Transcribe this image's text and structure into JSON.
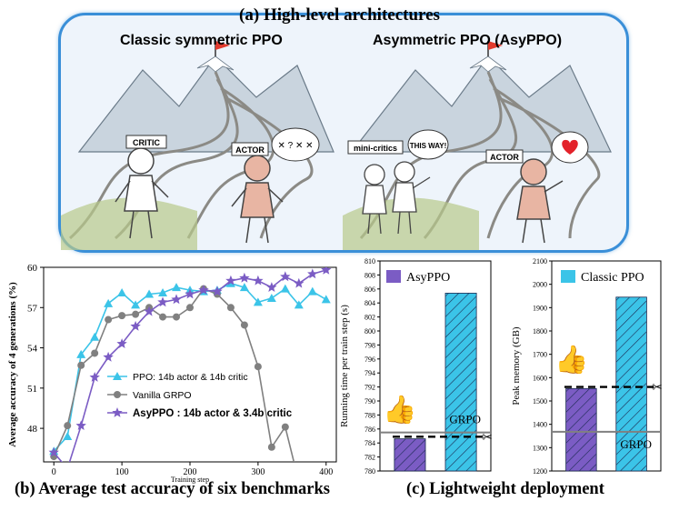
{
  "figure_a": {
    "title": "(a) High-level architectures",
    "left_title": "Classic symmetric PPO",
    "right_title": "Asymmetric PPO (AsyPPO)",
    "left_labels": {
      "critic": "CRITIC",
      "actor": "ACTOR",
      "thought": "✕ ? ✕ ✕"
    },
    "right_labels": {
      "critics": "mini-critics",
      "speech": "THIS WAY!",
      "actor": "ACTOR"
    }
  },
  "captions": {
    "b": "(b) Average test accuracy of six benchmarks",
    "c": "(c) Lightweight deployment"
  },
  "colors": {
    "ppo": "#3bc4e8",
    "grpo": "#808080",
    "asyppo": "#7b5cc4",
    "frame": "#3a8fd8"
  },
  "chart_data": [
    {
      "type": "line",
      "xlabel": "Training step",
      "ylabel": "Average accuracy of 4 generations (%)",
      "xlim": [
        -15,
        415
      ],
      "ylim": [
        45.5,
        60
      ],
      "xticks": [
        0,
        100,
        200,
        300,
        400
      ],
      "yticks": [
        48,
        51,
        54,
        57,
        60
      ],
      "grid": false,
      "legend": "lower-left",
      "series": [
        {
          "name": "PPO: 14b actor & 14b critic",
          "marker": "triangle",
          "x": [
            0,
            20,
            40,
            60,
            80,
            100,
            120,
            140,
            160,
            180,
            200,
            220,
            240,
            260,
            280,
            300,
            320,
            340,
            360,
            380,
            400
          ],
          "y": [
            46.3,
            47.4,
            53.5,
            54.8,
            57.3,
            58.1,
            57.2,
            58.0,
            58.1,
            58.5,
            58.3,
            58.2,
            58.3,
            58.8,
            58.5,
            57.4,
            57.7,
            58.4,
            57.2,
            58.2,
            57.6
          ]
        },
        {
          "name": "Vanilla GRPO",
          "marker": "circle",
          "x": [
            0,
            20,
            40,
            60,
            80,
            100,
            120,
            140,
            160,
            180,
            200,
            220,
            240,
            260,
            280,
            300,
            320,
            340,
            360
          ],
          "y": [
            45.9,
            48.2,
            52.7,
            53.6,
            56.1,
            56.4,
            56.5,
            57.0,
            56.3,
            56.3,
            57.0,
            58.4,
            58.0,
            57.0,
            55.7,
            52.6,
            46.6,
            48.1,
            44.0
          ]
        },
        {
          "name": "AsyPPO : 14b actor & 3.4b critic",
          "marker": "star",
          "x": [
            0,
            20,
            40,
            60,
            80,
            100,
            120,
            140,
            160,
            180,
            200,
            220,
            240,
            260,
            280,
            300,
            320,
            340,
            360,
            380,
            400
          ],
          "y": [
            46.2,
            45.0,
            48.2,
            51.8,
            53.3,
            54.3,
            55.6,
            56.7,
            57.4,
            57.6,
            58.0,
            58.3,
            58.2,
            59.0,
            59.2,
            59.0,
            58.5,
            59.3,
            58.8,
            59.5,
            59.8
          ]
        }
      ]
    },
    {
      "type": "bar",
      "ylabel": "Running time per train step (s)",
      "ylim": [
        780,
        810
      ],
      "yticks": [
        780,
        782,
        784,
        786,
        788,
        790,
        792,
        794,
        796,
        798,
        800,
        802,
        804,
        806,
        808,
        810
      ],
      "legend": "top-left",
      "bars": [
        {
          "name": "AsyPPO",
          "value": 784.6,
          "color": "#7b5cc4"
        },
        {
          "name": "Classic PPO",
          "value": 805.4,
          "color": "#3bc4e8"
        }
      ],
      "reference_line": {
        "label": "GRPO",
        "value": 785.5
      },
      "dashed_line": 784.9
    },
    {
      "type": "bar",
      "ylabel": "Peak memory (GB)",
      "ylim": [
        1200,
        2100
      ],
      "yticks": [
        1200,
        1300,
        1400,
        1500,
        1600,
        1700,
        1800,
        1900,
        2000,
        2100
      ],
      "legend": "top-left",
      "bars": [
        {
          "name": "AsyPPO",
          "value": 1553,
          "color": "#7b5cc4"
        },
        {
          "name": "Classic PPO",
          "value": 1945,
          "color": "#3bc4e8"
        }
      ],
      "reference_line": {
        "label": "GRPO",
        "value": 1368
      },
      "dashed_line": 1560
    }
  ]
}
